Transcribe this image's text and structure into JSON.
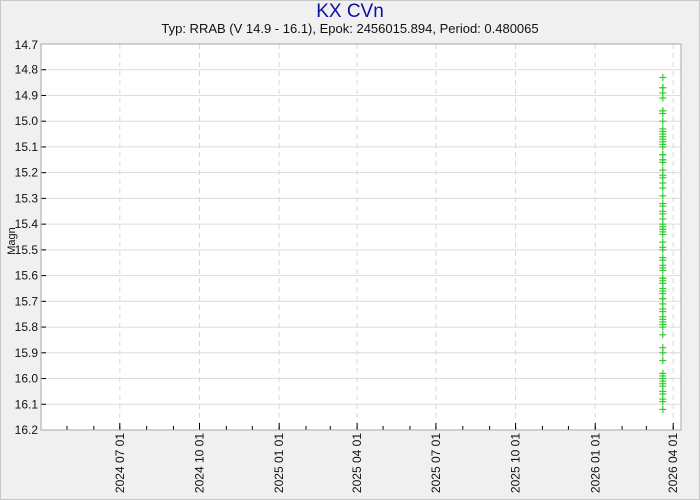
{
  "chart_data": {
    "type": "scatter",
    "title": "KX CVn",
    "subtitle": "Typ: RRAB (V 14.9 - 16.1), Epok: 2456015.894, Period: 0.480065",
    "ylabel": "Magn",
    "xlabel": "",
    "x_axis_type": "date",
    "xlim": [
      "2024-04-01",
      "2026-04-10"
    ],
    "ylim": [
      14.7,
      16.2
    ],
    "y_inverted": true,
    "y_ticks": [
      "14.7",
      "14.8",
      "14.9",
      "15.0",
      "15.1",
      "15.2",
      "15.3",
      "15.4",
      "15.5",
      "15.6",
      "15.7",
      "15.8",
      "15.9",
      "16.0",
      "16.1",
      "16.2"
    ],
    "x_ticks": [
      {
        "date": "2024-07-01",
        "label": "2024 07 01"
      },
      {
        "date": "2024-10-01",
        "label": "2024 10 01"
      },
      {
        "date": "2025-01-01",
        "label": "2025 01 01"
      },
      {
        "date": "2025-04-01",
        "label": "2025 04 01"
      },
      {
        "date": "2025-07-01",
        "label": "2025 07 01"
      },
      {
        "date": "2025-10-01",
        "label": "2025 10 01"
      },
      {
        "date": "2026-01-01",
        "label": "2026 01 01"
      },
      {
        "date": "2026-04-01",
        "label": "2026 04 01"
      }
    ],
    "grid": {
      "horizontal": true,
      "vertical": "dashed"
    },
    "marker": "plus",
    "color": "#33cc33",
    "points_date": "2026-03-20",
    "values": [
      14.83,
      14.87,
      14.87,
      14.89,
      14.91,
      14.96,
      14.96,
      14.97,
      15.0,
      15.03,
      15.04,
      15.05,
      15.06,
      15.07,
      15.08,
      15.09,
      15.1,
      15.13,
      15.13,
      15.15,
      15.15,
      15.16,
      15.19,
      15.21,
      15.22,
      15.24,
      15.26,
      15.29,
      15.32,
      15.33,
      15.35,
      15.36,
      15.38,
      15.4,
      15.41,
      15.42,
      15.42,
      15.43,
      15.44,
      15.47,
      15.49,
      15.5,
      15.53,
      15.54,
      15.56,
      15.57,
      15.58,
      15.61,
      15.61,
      15.62,
      15.63,
      15.65,
      15.66,
      15.67,
      15.69,
      15.69,
      15.71,
      15.73,
      15.74,
      15.76,
      15.77,
      15.78,
      15.79,
      15.8,
      15.83,
      15.88,
      15.9,
      15.93,
      15.98,
      15.99,
      16.0,
      16.01,
      16.02,
      16.03,
      16.05,
      16.06,
      16.08,
      16.09,
      16.12
    ]
  }
}
